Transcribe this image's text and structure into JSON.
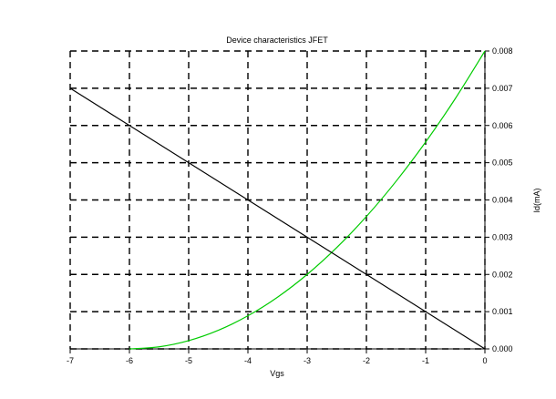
{
  "chart_data": {
    "type": "line",
    "title": "Device characteristics JFET",
    "xlabel": "Vgs",
    "ylabel": "Id(mA)",
    "xlim": [
      -7,
      0
    ],
    "ylim": [
      0,
      0.008
    ],
    "x_ticks": [
      "-7",
      "-6",
      "-5",
      "-4",
      "-3",
      "-2",
      "-1",
      "0"
    ],
    "y_ticks": [
      "0.000",
      "0.001",
      "0.002",
      "0.003",
      "0.004",
      "0.005",
      "0.006",
      "0.007",
      "0.008"
    ],
    "grid": true,
    "y_axis_side": "right",
    "series": [
      {
        "color": "#00cc00",
        "x": [
          -6,
          -5.5,
          -5,
          -4.5,
          -4,
          -3.5,
          -3,
          -2.5,
          -2,
          -1.5,
          -1,
          -0.5,
          0
        ],
        "y": [
          0,
          5.56e-05,
          0.000222,
          0.0005,
          0.000889,
          0.001389,
          0.002,
          0.002722,
          0.003556,
          0.0045,
          0.005556,
          0.006722,
          0.008
        ]
      },
      {
        "color": "#000000",
        "x": [
          -7,
          0
        ],
        "y": [
          0.007,
          0
        ]
      }
    ]
  }
}
